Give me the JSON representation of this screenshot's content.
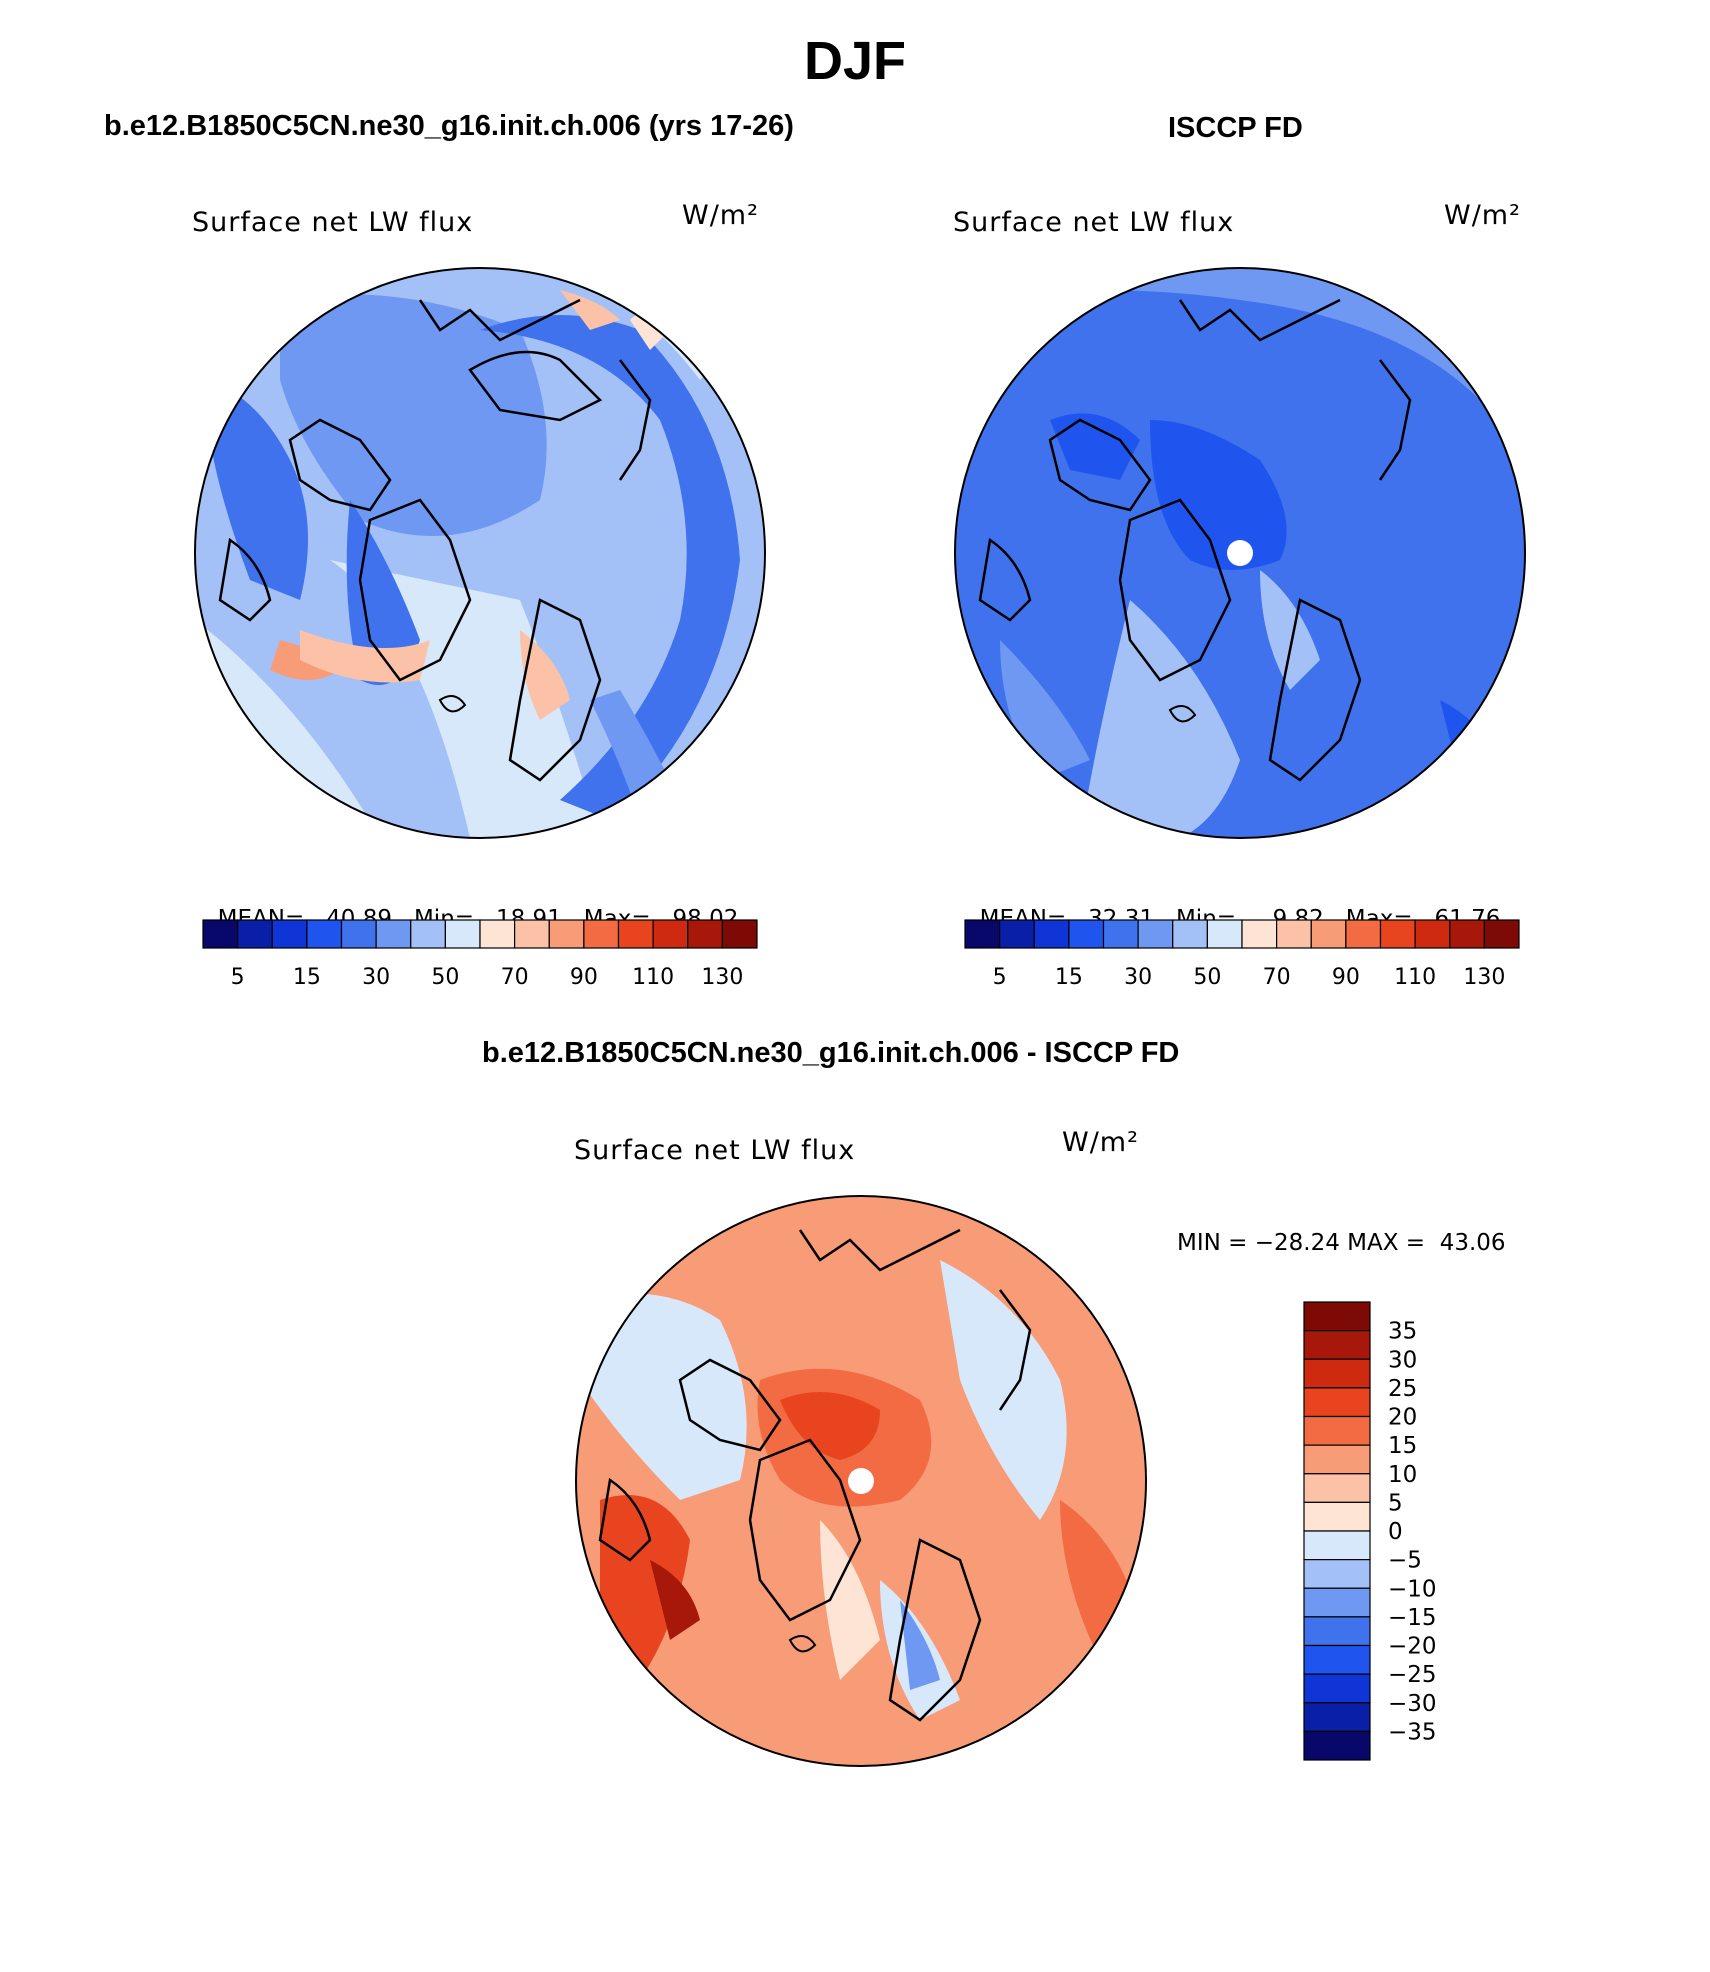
{
  "figure": {
    "title": "DJF",
    "panels": [
      {
        "id": "model",
        "title": "b.e12.B1850C5CN.ne30_g16.init.ch.006 (yrs 17-26)",
        "variable": "Surface net LW flux",
        "units": "W/m²",
        "stats": {
          "mean_label": "MEAN=",
          "mean": "40.89",
          "min_label": "Min=",
          "min": "18.91",
          "max_label": "Max=",
          "max": "98.02"
        }
      },
      {
        "id": "obs",
        "title": "ISCCP FD",
        "variable": "Surface net LW flux",
        "units": "W/m²",
        "stats": {
          "mean_label": "MEAN=",
          "mean": "32.31",
          "min_label": "Min=",
          "min": "9.82",
          "max_label": "Max=",
          "max": "61.76"
        }
      },
      {
        "id": "diff",
        "title": "b.e12.B1850C5CN.ne30_g16.init.ch.006 - ISCCP FD",
        "variable": "Surface net LW flux",
        "units": "W/m²",
        "minmax": "MIN = −28.24 MAX =  43.06"
      }
    ],
    "colorbar_abs": {
      "colors": [
        "#08086b",
        "#0a1fa8",
        "#1035d6",
        "#1f55ee",
        "#3f72ec",
        "#6e98f2",
        "#a3c1f7",
        "#d8e8fb",
        "#fde4d4",
        "#fbc2a7",
        "#f89b77",
        "#f26b43",
        "#e8441f",
        "#cd2a10",
        "#a8180a",
        "#7e0a06"
      ],
      "tick_labels": [
        "5",
        "15",
        "30",
        "50",
        "70",
        "90",
        "110",
        "130"
      ]
    },
    "colorbar_diff": {
      "colors": [
        "#7e0a06",
        "#a8180a",
        "#cd2a10",
        "#e8441f",
        "#f26b43",
        "#f89b77",
        "#fbc2a7",
        "#fde4d4",
        "#d8e8fb",
        "#a3c1f7",
        "#6e98f2",
        "#3f72ec",
        "#1f55ee",
        "#1035d6",
        "#0a1fa8",
        "#08086b"
      ],
      "tick_labels": [
        "35",
        "30",
        "25",
        "20",
        "15",
        "10",
        "5",
        "0",
        "−5",
        "−10",
        "−15",
        "−20",
        "−25",
        "−30",
        "−35"
      ]
    }
  }
}
